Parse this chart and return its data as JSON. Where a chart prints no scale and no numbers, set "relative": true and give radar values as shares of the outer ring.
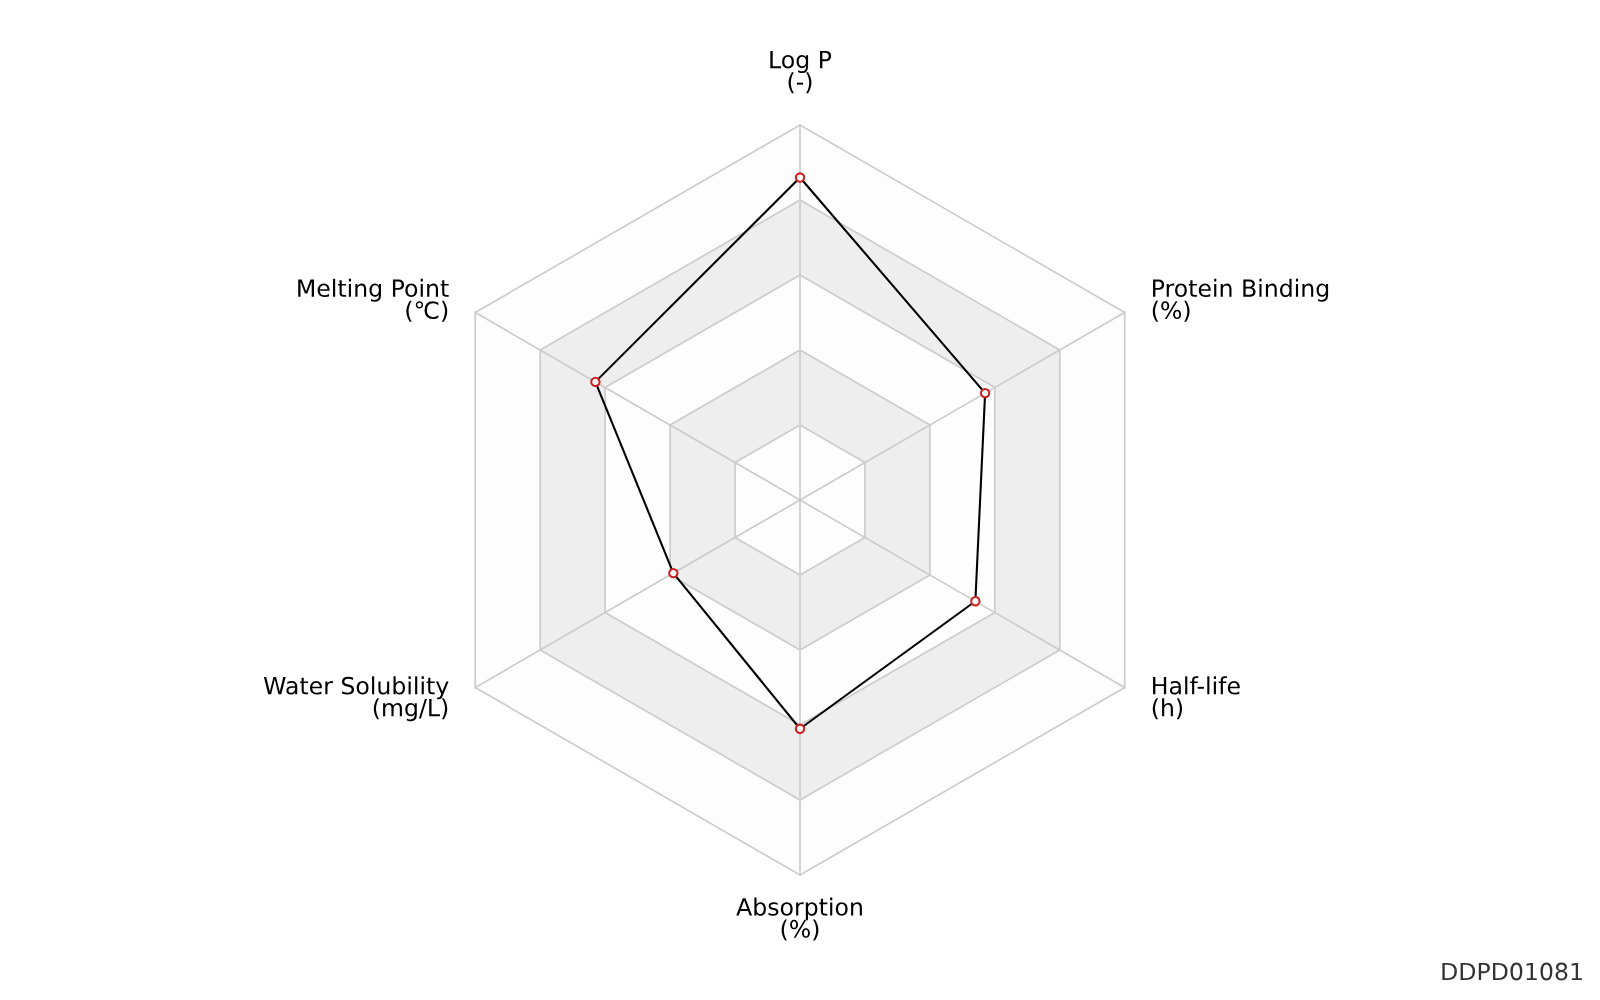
{
  "chart_data": {
    "type": "radar",
    "relative": true,
    "categories": [
      "Log P\n(-)",
      "Protein Binding\n(%)",
      "Half-life\n(h)",
      "Absorption\n(%)",
      "Water Solubility\n(mg/L)",
      "Melting Point\n(℃)"
    ],
    "series": [
      {
        "color": "#000000",
        "values": [
          0.86,
          0.57,
          0.54,
          0.61,
          0.39,
          0.63
        ]
      }
    ],
    "marker": "circle",
    "grid": true,
    "annotations": [
      "DDPD01081"
    ]
  }
}
